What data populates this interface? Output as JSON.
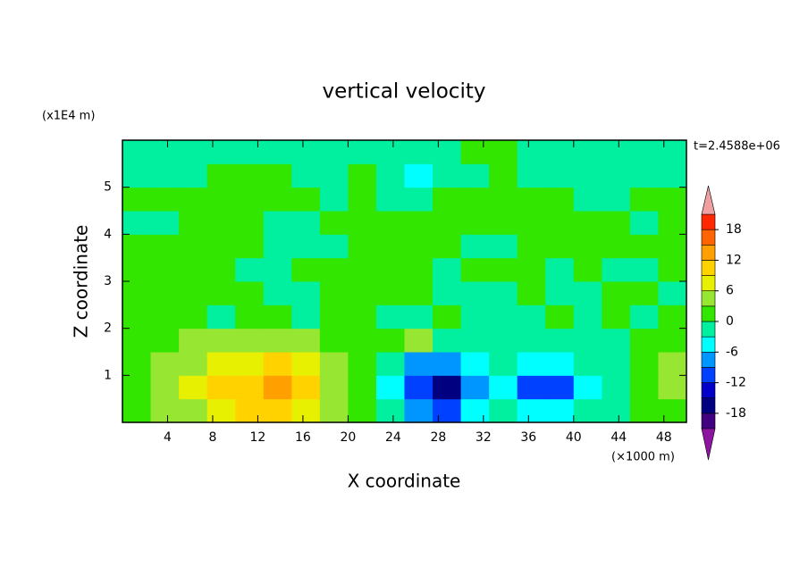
{
  "chart_data": {
    "type": "contour",
    "title": "vertical velocity",
    "x_label": "X coordinate",
    "y_label": "Z coordinate",
    "x_unit": "(×1000 m)",
    "y_unit": "(x1E4 m)",
    "annotation": "t=2.4588e+06",
    "xlim": [
      0,
      50
    ],
    "xticks": [
      4,
      8,
      12,
      16,
      20,
      24,
      28,
      32,
      36,
      40,
      44,
      48
    ],
    "ylim": [
      0,
      6
    ],
    "yticks": [
      1,
      2,
      3,
      4,
      5
    ],
    "x": [
      1.25,
      3.75,
      6.25,
      8.75,
      11.25,
      13.75,
      16.25,
      18.75,
      21.25,
      23.75,
      26.25,
      28.75,
      31.25,
      33.75,
      36.25,
      38.75,
      41.25,
      43.75,
      46.25,
      48.75
    ],
    "y": [
      0.25,
      0.75,
      1.25,
      1.75,
      2.25,
      2.75,
      3.25,
      3.75,
      4.25,
      4.75,
      5.25,
      5.75
    ],
    "z": [
      [
        2,
        4,
        5,
        8,
        10,
        9,
        6,
        4,
        1,
        -3,
        -7,
        -11,
        -6,
        -2,
        -4,
        -5,
        -3,
        -1,
        1,
        2
      ],
      [
        2,
        4,
        7,
        10,
        11,
        13,
        9,
        5,
        1,
        -5,
        -12,
        -16,
        -9,
        -4,
        -11,
        -10,
        -4,
        -1,
        1,
        4
      ],
      [
        2,
        3,
        5,
        7,
        8,
        9,
        8,
        4,
        1,
        -3,
        -7,
        -9,
        -5,
        -3,
        -6,
        -6,
        -3,
        -1,
        1,
        3
      ],
      [
        1,
        2,
        3,
        3,
        4,
        4,
        3,
        2,
        1,
        1,
        3,
        -1,
        -1,
        -2,
        -2,
        -1,
        -1,
        -1,
        1,
        1
      ],
      [
        1,
        1,
        1,
        -1,
        1,
        1,
        -1,
        1,
        1,
        -1,
        -1,
        1,
        -1,
        -1,
        -1,
        1,
        -1,
        1,
        -1,
        1
      ],
      [
        2,
        1,
        1,
        1,
        1,
        -1,
        -1,
        1,
        1,
        1,
        1,
        -1,
        -1,
        -1,
        1,
        -1,
        -1,
        1,
        1,
        -1
      ],
      [
        1,
        1,
        1,
        1,
        -1,
        -1,
        1,
        1,
        1,
        1,
        1,
        -1,
        1,
        1,
        1,
        -1,
        1,
        -1,
        -1,
        1
      ],
      [
        1,
        1,
        1,
        1,
        1,
        -1,
        -1,
        -1,
        1,
        1,
        1,
        1,
        -1,
        -1,
        1,
        1,
        1,
        1,
        1,
        1
      ],
      [
        -1,
        -1,
        1,
        1,
        1,
        -1,
        -1,
        1,
        1,
        1,
        1,
        1,
        1,
        1,
        1,
        1,
        1,
        1,
        -1,
        1
      ],
      [
        1,
        1,
        1,
        1,
        1,
        1,
        1,
        -1,
        1,
        -2,
        -2,
        1,
        1,
        1,
        1,
        1,
        -1,
        -1,
        1,
        1
      ],
      [
        -1,
        -1,
        -1,
        1,
        1,
        1,
        -1,
        -1,
        1,
        -1,
        -4,
        -1,
        -1,
        1,
        -1,
        -1,
        -1,
        -1,
        -1,
        -1
      ],
      [
        -1,
        -1,
        -1,
        -1,
        -1,
        -1,
        -1,
        -1,
        -1,
        -1,
        -1,
        -1,
        1,
        1,
        -1,
        -1,
        -1,
        -1,
        -1,
        -1
      ]
    ],
    "levels": [
      -21,
      -18,
      -15,
      -12,
      -9,
      -6,
      -3,
      0,
      3,
      6,
      9,
      12,
      15,
      18,
      21
    ],
    "colors": [
      "#400080",
      "#000080",
      "#0000c8",
      "#0040ff",
      "#0096ff",
      "#00ffff",
      "#00f0a0",
      "#32e600",
      "#96e632",
      "#e6f000",
      "#ffd200",
      "#ffa000",
      "#ff6400",
      "#ff2800"
    ],
    "over_color": "#f0a0a0",
    "under_color": "#8c14a0",
    "colorbar_ticks": [
      -18,
      -12,
      -6,
      0,
      6,
      12,
      18
    ]
  }
}
